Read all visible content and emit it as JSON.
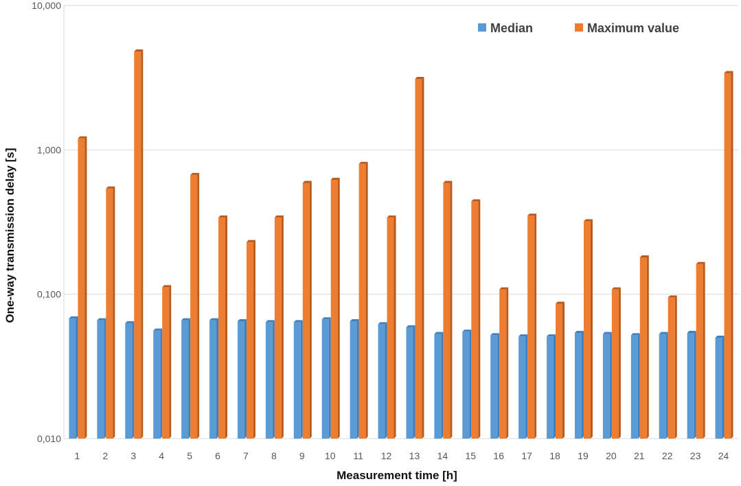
{
  "chart_data": {
    "type": "bar",
    "title": "",
    "xlabel": "Measurement time [h]",
    "ylabel": "One-way transmission delay [s]",
    "yscale": "log",
    "ylim": [
      0.01,
      10
    ],
    "yticks": [
      0.01,
      0.1,
      1,
      10
    ],
    "ytick_labels": [
      "0,010",
      "0,100",
      "1,000",
      "10,000"
    ],
    "categories": [
      "1",
      "2",
      "3",
      "4",
      "5",
      "6",
      "7",
      "8",
      "9",
      "10",
      "11",
      "12",
      "13",
      "14",
      "15",
      "16",
      "17",
      "18",
      "19",
      "20",
      "21",
      "22",
      "23",
      "24"
    ],
    "series": [
      {
        "name": "Median",
        "color": "#5B9BD5",
        "values": [
          0.068,
          0.066,
          0.063,
          0.056,
          0.066,
          0.066,
          0.065,
          0.064,
          0.064,
          0.067,
          0.065,
          0.062,
          0.059,
          0.053,
          0.055,
          0.052,
          0.051,
          0.051,
          0.054,
          0.053,
          0.052,
          0.053,
          0.054,
          0.05
        ]
      },
      {
        "name": "Maximum value",
        "color": "#ED7D31",
        "values": [
          1.2,
          0.54,
          4.8,
          0.112,
          0.67,
          0.34,
          0.23,
          0.34,
          0.59,
          0.62,
          0.8,
          0.34,
          3.1,
          0.59,
          0.44,
          0.108,
          0.35,
          0.086,
          0.32,
          0.108,
          0.18,
          0.095,
          0.162,
          3.4
        ]
      }
    ],
    "grid": true,
    "legend_position": "top-right"
  }
}
